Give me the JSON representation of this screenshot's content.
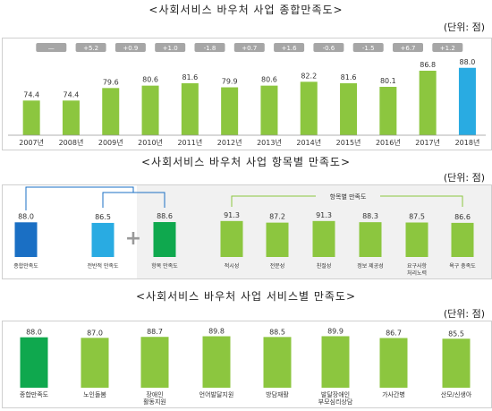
{
  "chart_data": [
    {
      "type": "bar",
      "title": "<사회서비스 바우처 사업 종합만족도>",
      "unit": "(단위: 점)",
      "categories": [
        "2007년",
        "2008년",
        "2009년",
        "2010년",
        "2011년",
        "2012년",
        "2013년",
        "2014년",
        "2015년",
        "2016년",
        "2017년",
        "2018년"
      ],
      "values": [
        74.4,
        74.4,
        79.6,
        80.6,
        81.6,
        79.9,
        80.6,
        82.2,
        81.6,
        80.1,
        86.8,
        88.0
      ],
      "change_labels": [
        "—",
        "+5.2",
        "+0.9",
        "+1.0",
        "-1.8",
        "+0.7",
        "+1.6",
        "-0.6",
        "-1.5",
        "+6.7",
        "+1.2"
      ],
      "colors": {
        "bar": "#8cc63f",
        "highlight": "#29abe2",
        "badge": "#a6a6a6"
      },
      "ylim": [
        60,
        92
      ]
    },
    {
      "type": "bar",
      "title": "<사회서비스 바우처 사업 항목별 만족도>",
      "unit": "(단위: 점)",
      "categories": [
        "종합만족도",
        "전반적 만족도",
        "항목 만족도",
        "적시성",
        "전문성",
        "친절성",
        "정보 제공성",
        "요구사항 처리노력",
        "욕구 충족도"
      ],
      "values": [
        88.0,
        86.5,
        88.6,
        91.3,
        87.2,
        91.3,
        88.3,
        87.5,
        86.6
      ],
      "group_label": "항목별 만족도",
      "plus_sign": "+",
      "colors": {
        "overall": "#1a6fc4",
        "general": "#29abe2",
        "item": "#0fa84e",
        "detail": "#8cc63f",
        "group_bg": "#f1f1f1",
        "connector": "#1a6fc4",
        "bracket": "#8cc63f"
      },
      "ylim": [
        0,
        100
      ]
    },
    {
      "type": "bar",
      "title": "<사회서비스 바우처 사업 서비스별 만족도>",
      "unit": "(단위: 점)",
      "categories": [
        "종합만족도",
        "노인돌봄",
        "장애인 활동지원",
        "언어발달지원",
        "방담재활",
        "발달장애인 부모심리상담",
        "가사간병",
        "산모/신생아"
      ],
      "values": [
        88.0,
        87.0,
        88.7,
        89.8,
        88.5,
        89.9,
        86.7,
        85.5
      ],
      "colors": {
        "overall": "#0fa84e",
        "bar": "#8cc63f"
      },
      "ylim": [
        0,
        100
      ]
    }
  ]
}
